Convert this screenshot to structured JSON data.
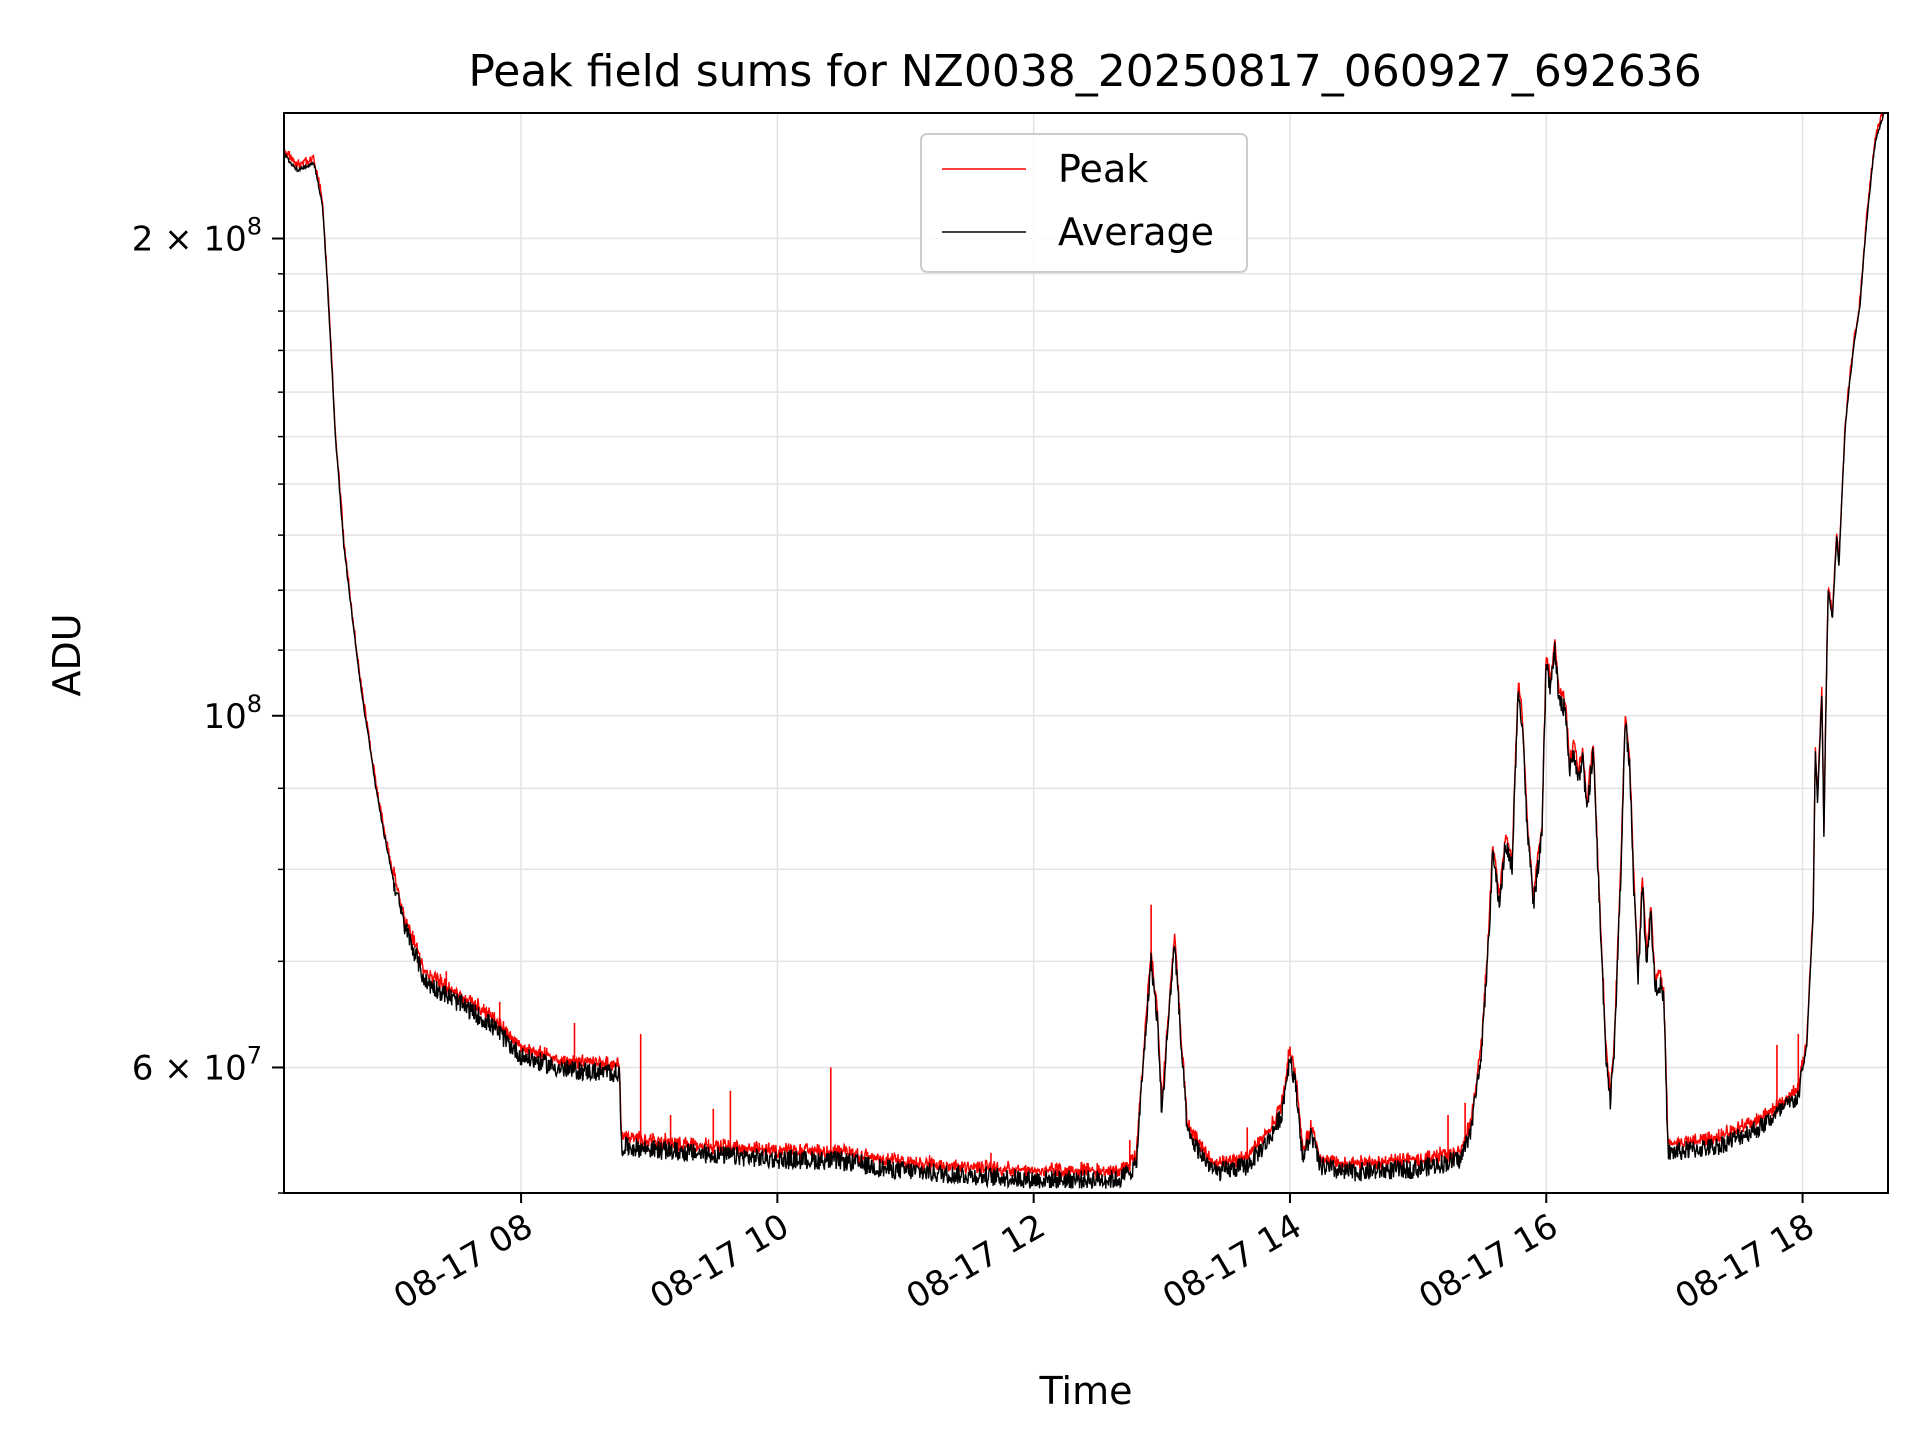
{
  "chart_data": {
    "type": "line",
    "title": "Peak field sums for NZ0038_20250817_060927_692636",
    "xlabel": "Time",
    "ylabel": "ADU",
    "yscale": "log",
    "grid": true,
    "legend_position": "top-center",
    "x_range": [
      "2025-08-17 06:09",
      "2025-08-17 18:40"
    ],
    "ylim": [
      50000000,
      240000000
    ],
    "x_ticks": [
      "08-17 08",
      "08-17 10",
      "08-17 12",
      "08-17 14",
      "08-17 16",
      "08-17 18"
    ],
    "y_ticks": [
      {
        "value": 200000000,
        "mantissa": "2",
        "exponent": "8",
        "times": "×"
      },
      {
        "value": 100000000,
        "mantissa": "10",
        "exponent": "8",
        "times": ""
      },
      {
        "value": 60000000,
        "mantissa": "6",
        "exponent": "7",
        "times": "×"
      }
    ],
    "series": [
      {
        "name": "Peak",
        "color": "#ff0000"
      },
      {
        "name": "Average",
        "color": "#000000"
      }
    ],
    "average_points": [
      [
        "2025-08-17 06:09",
        226000000
      ],
      [
        "2025-08-17 06:15",
        221000000
      ],
      [
        "2025-08-17 06:23",
        223000000
      ],
      [
        "2025-08-17 06:27",
        210000000
      ],
      [
        "2025-08-17 06:30",
        180000000
      ],
      [
        "2025-08-17 06:33",
        150000000
      ],
      [
        "2025-08-17 06:37",
        128000000
      ],
      [
        "2025-08-17 06:41",
        115000000
      ],
      [
        "2025-08-17 06:45",
        104000000
      ],
      [
        "2025-08-17 06:49",
        96000000
      ],
      [
        "2025-08-17 06:52",
        90000000
      ],
      [
        "2025-08-17 06:56",
        84000000
      ],
      [
        "2025-08-17 07:00",
        79000000
      ],
      [
        "2025-08-17 07:05",
        74000000
      ],
      [
        "2025-08-17 07:10",
        71000000
      ],
      [
        "2025-08-17 07:15",
        68000000
      ],
      [
        "2025-08-17 07:30",
        66000000
      ],
      [
        "2025-08-17 07:45",
        64000000
      ],
      [
        "2025-08-17 08:00",
        61000000
      ],
      [
        "2025-08-17 08:20",
        59800000
      ],
      [
        "2025-08-17 08:46",
        59500000
      ],
      [
        "2025-08-17 08:47",
        53500000
      ],
      [
        "2025-08-17 09:20",
        53000000
      ],
      [
        "2025-08-17 10:00",
        52500000
      ],
      [
        "2025-08-17 10:30",
        52400000
      ],
      [
        "2025-08-17 10:50",
        51800000
      ],
      [
        "2025-08-17 11:20",
        51400000
      ],
      [
        "2025-08-17 12:00",
        51000000
      ],
      [
        "2025-08-17 12:40",
        51000000
      ],
      [
        "2025-08-17 12:48",
        52000000
      ],
      [
        "2025-08-17 12:52",
        62000000
      ],
      [
        "2025-08-17 12:55",
        70000000
      ],
      [
        "2025-08-17 12:58",
        64000000
      ],
      [
        "2025-08-17 13:00",
        56000000
      ],
      [
        "2025-08-17 13:03",
        64000000
      ],
      [
        "2025-08-17 13:06",
        72000000
      ],
      [
        "2025-08-17 13:09",
        62000000
      ],
      [
        "2025-08-17 13:12",
        54500000
      ],
      [
        "2025-08-17 13:18",
        53000000
      ],
      [
        "2025-08-17 13:25",
        51500000
      ],
      [
        "2025-08-17 13:40",
        52000000
      ],
      [
        "2025-08-17 13:50",
        54000000
      ],
      [
        "2025-08-17 13:56",
        56000000
      ],
      [
        "2025-08-17 14:00",
        61000000
      ],
      [
        "2025-08-17 14:03",
        58000000
      ],
      [
        "2025-08-17 14:06",
        52500000
      ],
      [
        "2025-08-17 14:10",
        54500000
      ],
      [
        "2025-08-17 14:14",
        52000000
      ],
      [
        "2025-08-17 14:25",
        51500000
      ],
      [
        "2025-08-17 15:00",
        51800000
      ],
      [
        "2025-08-17 15:20",
        52500000
      ],
      [
        "2025-08-17 15:25",
        55000000
      ],
      [
        "2025-08-17 15:30",
        62000000
      ],
      [
        "2025-08-17 15:33",
        72000000
      ],
      [
        "2025-08-17 15:35",
        82000000
      ],
      [
        "2025-08-17 15:38",
        76000000
      ],
      [
        "2025-08-17 15:41",
        83000000
      ],
      [
        "2025-08-17 15:44",
        80000000
      ],
      [
        "2025-08-17 15:47",
        104000000
      ],
      [
        "2025-08-17 15:49",
        98000000
      ],
      [
        "2025-08-17 15:51",
        85000000
      ],
      [
        "2025-08-17 15:54",
        76000000
      ],
      [
        "2025-08-17 15:56",
        80000000
      ],
      [
        "2025-08-17 15:58",
        84000000
      ],
      [
        "2025-08-17 16:00",
        108000000
      ],
      [
        "2025-08-17 16:02",
        104000000
      ],
      [
        "2025-08-17 16:04",
        110000000
      ],
      [
        "2025-08-17 16:06",
        102000000
      ],
      [
        "2025-08-17 16:09",
        101000000
      ],
      [
        "2025-08-17 16:11",
        92000000
      ],
      [
        "2025-08-17 16:13",
        95000000
      ],
      [
        "2025-08-17 16:15",
        91000000
      ],
      [
        "2025-08-17 16:17",
        94000000
      ],
      [
        "2025-08-17 16:19",
        87000000
      ],
      [
        "2025-08-17 16:22",
        95000000
      ],
      [
        "2025-08-17 16:24",
        81000000
      ],
      [
        "2025-08-17 16:26",
        70000000
      ],
      [
        "2025-08-17 16:28",
        61000000
      ],
      [
        "2025-08-17 16:30",
        57000000
      ],
      [
        "2025-08-17 16:32",
        62000000
      ],
      [
        "2025-08-17 16:35",
        80000000
      ],
      [
        "2025-08-17 16:37",
        99000000
      ],
      [
        "2025-08-17 16:39",
        93000000
      ],
      [
        "2025-08-17 16:41",
        78000000
      ],
      [
        "2025-08-17 16:43",
        68000000
      ],
      [
        "2025-08-17 16:45",
        78000000
      ],
      [
        "2025-08-17 16:47",
        70000000
      ],
      [
        "2025-08-17 16:49",
        75000000
      ],
      [
        "2025-08-17 16:51",
        67000000
      ],
      [
        "2025-08-17 16:53",
        68000000
      ],
      [
        "2025-08-17 16:55",
        66000000
      ],
      [
        "2025-08-17 16:57",
        53000000
      ],
      [
        "2025-08-17 17:20",
        53500000
      ],
      [
        "2025-08-17 17:40",
        55000000
      ],
      [
        "2025-08-17 17:58",
        57500000
      ],
      [
        "2025-08-17 18:02",
        62000000
      ],
      [
        "2025-08-17 18:05",
        75000000
      ],
      [
        "2025-08-17 18:06",
        95000000
      ],
      [
        "2025-08-17 18:07",
        88000000
      ],
      [
        "2025-08-17 18:09",
        103000000
      ],
      [
        "2025-08-17 18:10",
        84000000
      ],
      [
        "2025-08-17 18:12",
        120000000
      ],
      [
        "2025-08-17 18:14",
        115000000
      ],
      [
        "2025-08-17 18:16",
        130000000
      ],
      [
        "2025-08-17 18:17",
        124000000
      ],
      [
        "2025-08-17 18:20",
        152000000
      ],
      [
        "2025-08-17 18:22",
        162000000
      ],
      [
        "2025-08-17 18:24",
        171000000
      ],
      [
        "2025-08-17 18:27",
        182000000
      ],
      [
        "2025-08-17 18:30",
        205000000
      ],
      [
        "2025-08-17 18:34",
        230000000
      ],
      [
        "2025-08-17 18:40",
        245000000
      ]
    ],
    "peak_spikes": [
      [
        "2025-08-17 07:10",
        71000000
      ],
      [
        "2025-08-17 07:25",
        69000000
      ],
      [
        "2025-08-17 07:50",
        66000000
      ],
      [
        "2025-08-17 08:25",
        64000000
      ],
      [
        "2025-08-17 08:40",
        61000000
      ],
      [
        "2025-08-17 08:56",
        63000000
      ],
      [
        "2025-08-17 09:10",
        56000000
      ],
      [
        "2025-08-17 09:30",
        56500000
      ],
      [
        "2025-08-17 09:38",
        58000000
      ],
      [
        "2025-08-17 10:25",
        60000000
      ],
      [
        "2025-08-17 11:40",
        53000000
      ],
      [
        "2025-08-17 12:45",
        54000000
      ],
      [
        "2025-08-17 12:55",
        76000000
      ],
      [
        "2025-08-17 13:40",
        55000000
      ],
      [
        "2025-08-17 15:14",
        56000000
      ],
      [
        "2025-08-17 15:22",
        57000000
      ],
      [
        "2025-08-17 17:48",
        62000000
      ],
      [
        "2025-08-17 17:58",
        63000000
      ]
    ]
  }
}
